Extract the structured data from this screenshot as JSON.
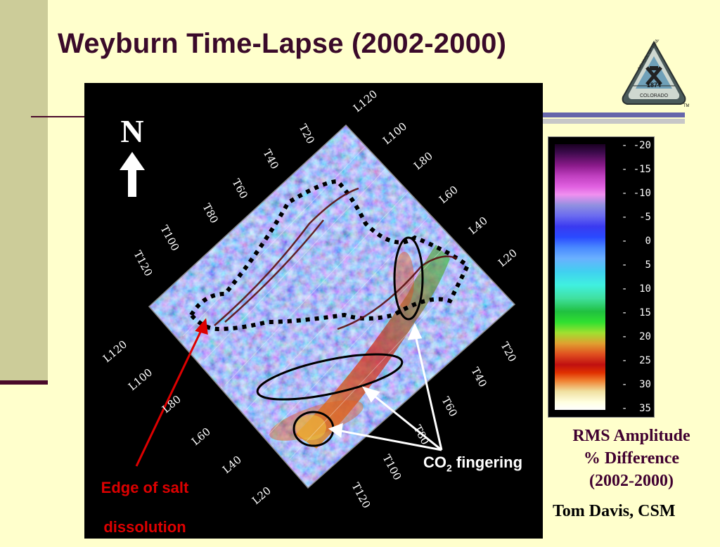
{
  "slide": {
    "title": "Weyburn Time-Lapse (2002-2000)",
    "logo_text": {
      "school": "SCHOOL OF MINES",
      "state": "COLORADO",
      "year": "1874",
      "tm": "TM"
    }
  },
  "map": {
    "north_label": "N",
    "grid_labels_top_left": [
      "T20",
      "T40",
      "T60",
      "T80",
      "T100",
      "T120"
    ],
    "grid_labels_top_right": [
      "L120",
      "L100",
      "L80",
      "L60",
      "L40",
      "L20"
    ],
    "grid_labels_bottom_left": [
      "L120",
      "L100",
      "L80",
      "L60",
      "L40",
      "L20"
    ],
    "grid_labels_bottom_right": [
      "T20",
      "T40",
      "T60",
      "T80",
      "T100",
      "T120"
    ],
    "annotation_salt": [
      "Edge of salt",
      "dissolution"
    ],
    "annotation_co2_prefix": "CO",
    "annotation_co2_sub": "2",
    "annotation_co2_suffix": " fingering"
  },
  "colorbar": {
    "labels": [
      "-20",
      "-15",
      "-10",
      "-5",
      "0",
      "5",
      "10",
      "15",
      "20",
      "25",
      "30",
      "35"
    ],
    "caption_lines": [
      "RMS Amplitude",
      "% Difference",
      "(2002-2000)"
    ]
  },
  "credit": "Tom Davis, CSM",
  "colors": {
    "title": "#3a0a2a",
    "background": "#ffffcc",
    "annotation_red": "#dd0000"
  }
}
